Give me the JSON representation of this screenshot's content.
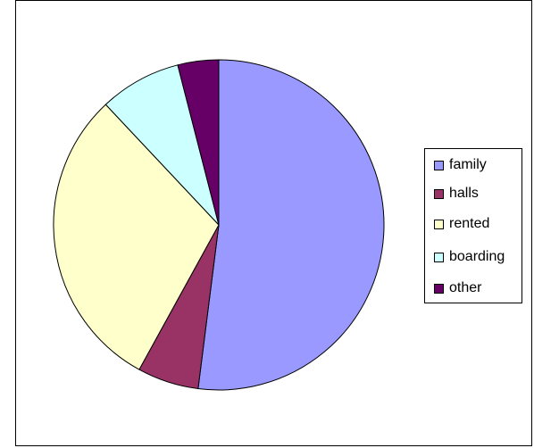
{
  "chart_data": {
    "type": "pie",
    "categories": [
      "family",
      "halls",
      "rented",
      "boarding",
      "other"
    ],
    "values": [
      52,
      6,
      30,
      8,
      4
    ],
    "colors": [
      "#9999ff",
      "#993366",
      "#ffffcc",
      "#ccffff",
      "#660066"
    ],
    "legend_position": "right",
    "start_angle_deg": 0,
    "direction": "clockwise"
  }
}
